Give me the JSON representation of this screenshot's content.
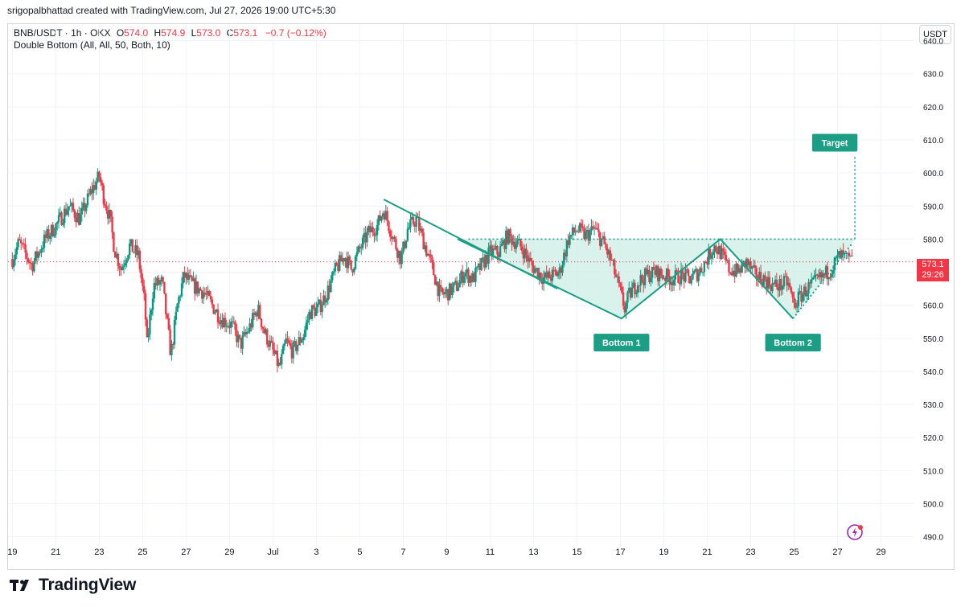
{
  "header": {
    "attribution": "srigopalbhattad created with TradingView.com, Jul 27, 2026 19:00 UTC+5:30"
  },
  "legend": {
    "symbol": "BNB/USDT · 1h · OKX",
    "open_label": "O",
    "open": "574.0",
    "high_label": "H",
    "high": "574.9",
    "low_label": "L",
    "low": "573.0",
    "close_label": "C",
    "close": "573.1",
    "change": "−0.7 (−0.12%)",
    "indicator": "Double Bottom (All, All, 50, Both, 10)"
  },
  "currency_button": "USDT",
  "price_tag": {
    "price": "573.1",
    "countdown": "29:26"
  },
  "footer": {
    "brand": "TradingView",
    "logo_icon": "tradingview-logo-icon"
  },
  "colors": {
    "up": "#089981",
    "down": "#f23645",
    "pattern": "#1b9e84",
    "pattern_fill": "#cdeee6",
    "grid": "#f0f3fa",
    "axis_text": "#131722"
  },
  "chart_data": {
    "type": "candlestick",
    "symbol": "BNB/USDT",
    "interval": "1h",
    "y_axis": {
      "ticks": [
        640,
        630,
        620,
        610,
        600,
        590,
        580,
        570,
        560,
        550,
        540,
        530,
        520,
        510,
        500,
        490
      ],
      "tick_labels": [
        "640.0",
        "630.0",
        "620.0",
        "610.0",
        "600.0",
        "590.0",
        "580.0",
        "570.0",
        "560.0",
        "550.0",
        "540.0",
        "530.0",
        "520.0",
        "510.0",
        "500.0",
        "490.0"
      ],
      "range": [
        487,
        645
      ]
    },
    "x_axis": {
      "tick_labels": [
        "19",
        "21",
        "23",
        "25",
        "27",
        "29",
        "Jul",
        "3",
        "5",
        "7",
        "9",
        "11",
        "13",
        "15",
        "17",
        "19",
        "21",
        "23",
        "25",
        "27",
        "29"
      ],
      "tick_days": [
        0,
        2,
        4,
        6,
        8,
        10,
        12,
        14,
        16,
        18,
        20,
        22,
        24,
        26,
        28,
        30,
        32,
        34,
        36,
        38,
        40
      ],
      "day_zero": "Jun 19",
      "range": [
        -0.2,
        41.5
      ]
    },
    "price_path": [
      [
        0.0,
        574
      ],
      [
        0.3,
        579
      ],
      [
        0.9,
        572
      ],
      [
        1.5,
        580
      ],
      [
        2.0,
        584
      ],
      [
        2.6,
        590
      ],
      [
        3.1,
        586
      ],
      [
        3.6,
        594
      ],
      [
        4.0,
        599
      ],
      [
        4.2,
        593
      ],
      [
        4.5,
        586
      ],
      [
        4.7,
        577
      ],
      [
        5.0,
        571
      ],
      [
        5.4,
        578
      ],
      [
        5.8,
        575
      ],
      [
        6.1,
        560
      ],
      [
        6.2,
        548
      ],
      [
        6.5,
        566
      ],
      [
        6.9,
        567
      ],
      [
        7.1,
        556
      ],
      [
        7.3,
        545
      ],
      [
        7.6,
        560
      ],
      [
        7.9,
        569
      ],
      [
        8.3,
        566
      ],
      [
        8.8,
        564
      ],
      [
        9.2,
        560
      ],
      [
        9.6,
        556
      ],
      [
        10.1,
        554
      ],
      [
        10.5,
        548
      ],
      [
        10.9,
        553
      ],
      [
        11.3,
        559
      ],
      [
        11.6,
        552
      ],
      [
        12.0,
        546
      ],
      [
        12.3,
        541
      ],
      [
        12.6,
        549
      ],
      [
        12.9,
        546
      ],
      [
        13.4,
        551
      ],
      [
        13.7,
        558
      ],
      [
        14.1,
        559
      ],
      [
        14.5,
        564
      ],
      [
        14.9,
        571
      ],
      [
        15.3,
        575
      ],
      [
        15.6,
        571
      ],
      [
        16.0,
        577
      ],
      [
        16.4,
        582
      ],
      [
        16.8,
        584
      ],
      [
        17.1,
        589
      ],
      [
        17.3,
        585
      ],
      [
        17.6,
        579
      ],
      [
        17.9,
        574
      ],
      [
        18.2,
        583
      ],
      [
        18.6,
        586
      ],
      [
        18.9,
        580
      ],
      [
        19.3,
        572
      ],
      [
        19.7,
        563
      ],
      [
        20.1,
        564
      ],
      [
        20.5,
        566
      ],
      [
        20.8,
        570
      ],
      [
        21.2,
        568
      ],
      [
        21.6,
        572
      ],
      [
        22.0,
        576
      ],
      [
        22.4,
        576
      ],
      [
        22.8,
        581
      ],
      [
        23.2,
        579
      ],
      [
        23.5,
        577
      ],
      [
        23.9,
        572
      ],
      [
        24.2,
        570
      ],
      [
        24.5,
        568
      ],
      [
        24.9,
        569
      ],
      [
        25.2,
        570
      ],
      [
        25.6,
        580
      ],
      [
        26.0,
        583
      ],
      [
        26.4,
        581
      ],
      [
        26.8,
        583
      ],
      [
        27.2,
        579
      ],
      [
        27.6,
        573
      ],
      [
        27.9,
        566
      ],
      [
        28.2,
        559
      ],
      [
        28.4,
        563
      ],
      [
        28.8,
        567
      ],
      [
        29.2,
        569
      ],
      [
        29.6,
        570
      ],
      [
        30.0,
        569
      ],
      [
        30.4,
        568
      ],
      [
        30.8,
        569
      ],
      [
        31.2,
        568
      ],
      [
        31.6,
        570
      ],
      [
        32.0,
        574
      ],
      [
        32.3,
        578
      ],
      [
        32.6,
        576
      ],
      [
        33.0,
        571
      ],
      [
        33.4,
        570
      ],
      [
        33.8,
        573
      ],
      [
        34.2,
        569
      ],
      [
        34.6,
        568
      ],
      [
        35.0,
        566
      ],
      [
        35.4,
        566
      ],
      [
        35.7,
        567
      ],
      [
        36.0,
        560
      ],
      [
        36.2,
        562
      ],
      [
        36.6,
        565
      ],
      [
        37.0,
        567
      ],
      [
        37.4,
        569
      ],
      [
        37.8,
        572
      ],
      [
        38.1,
        575
      ],
      [
        38.4,
        574
      ],
      [
        38.7,
        573.1
      ]
    ],
    "pattern": {
      "name": "Double Bottom",
      "descending_line": [
        [
          17.1,
          592
        ],
        [
          25.1,
          565
        ]
      ],
      "shape": [
        [
          20.5,
          580
        ],
        [
          28.05,
          556
        ],
        [
          32.6,
          580
        ],
        [
          35.95,
          556
        ],
        [
          38.65,
          578.5
        ]
      ],
      "neckline": {
        "from_day": 21.0,
        "to_day": 38.8,
        "price": 580
      },
      "target": {
        "day": 38.8,
        "from_price": 580,
        "to_price": 605
      },
      "labels": [
        {
          "text": "Bottom 1",
          "day": 28.05,
          "price": 556
        },
        {
          "text": "Bottom 2",
          "day": 35.95,
          "price": 556
        },
        {
          "text": "Target",
          "day": 38.8,
          "price": 605
        }
      ]
    },
    "last_price": 573.1,
    "ohlc": {
      "open": 574.0,
      "high": 574.9,
      "low": 573.0,
      "close": 573.1
    }
  }
}
